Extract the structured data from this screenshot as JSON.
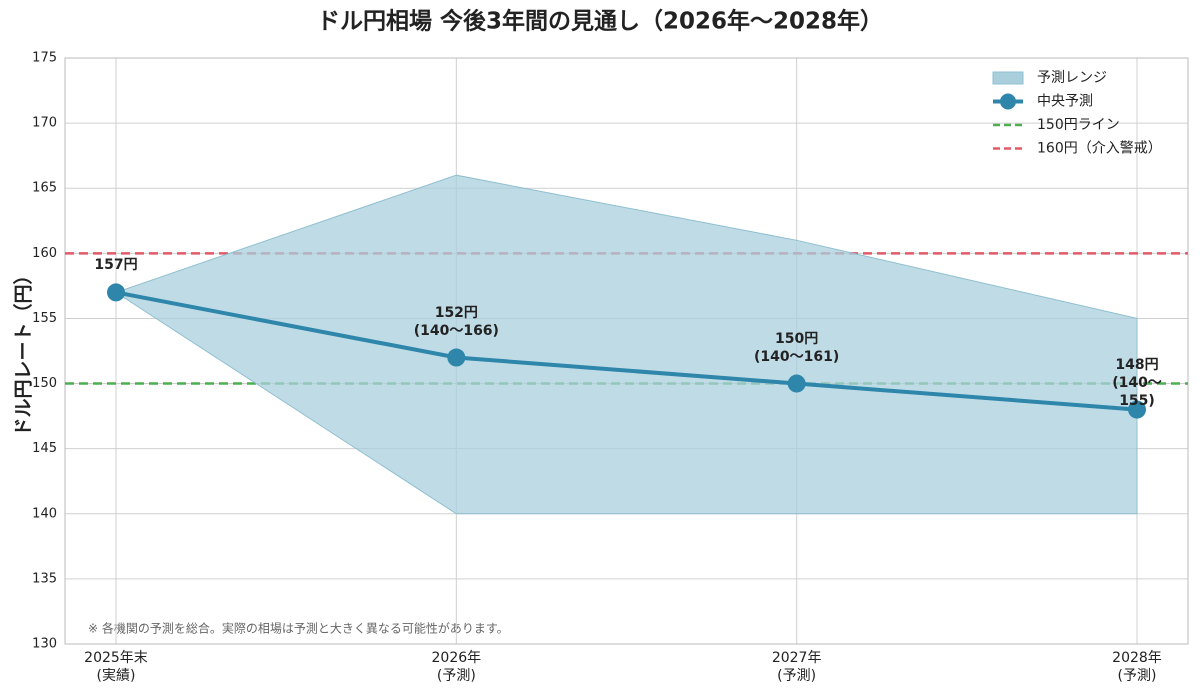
{
  "chart_data": {
    "type": "line",
    "title": "ドル円相場 今後3年間の見通し（2026年〜2028年）",
    "y_label": "ドル円レート（円）",
    "note": "※ 各機関の予測を総合。実際の相場は予測と大きく異なる可能性があります。",
    "categories": [
      "2025年末\n(実績)",
      "2026年\n(予測)",
      "2027年\n(予測)",
      "2028年\n(予測)"
    ],
    "series": [
      {
        "name": "予測レンジ",
        "type": "area",
        "color": "#a9cfdd",
        "lower": [
          157,
          140,
          140,
          140
        ],
        "upper": [
          157,
          166,
          161,
          155
        ]
      },
      {
        "name": "中央予測",
        "type": "line",
        "color": "#2e86ab",
        "values": [
          157,
          152,
          150,
          148
        ],
        "value_labels": [
          "157円",
          "152円\n(140〜166)",
          "150円\n(140〜161)",
          "148円\n(140〜155)"
        ]
      }
    ],
    "hlines": [
      {
        "name": "150円ライン",
        "value": 150,
        "color": "#4caf50"
      },
      {
        "name": "160円（介入警戒）",
        "value": 160,
        "color": "#e05a6a"
      }
    ],
    "ylim": [
      130,
      175
    ],
    "yticks": [
      130,
      135,
      140,
      145,
      150,
      155,
      160,
      165,
      170,
      175
    ],
    "grid": true,
    "legend": "upper right"
  }
}
